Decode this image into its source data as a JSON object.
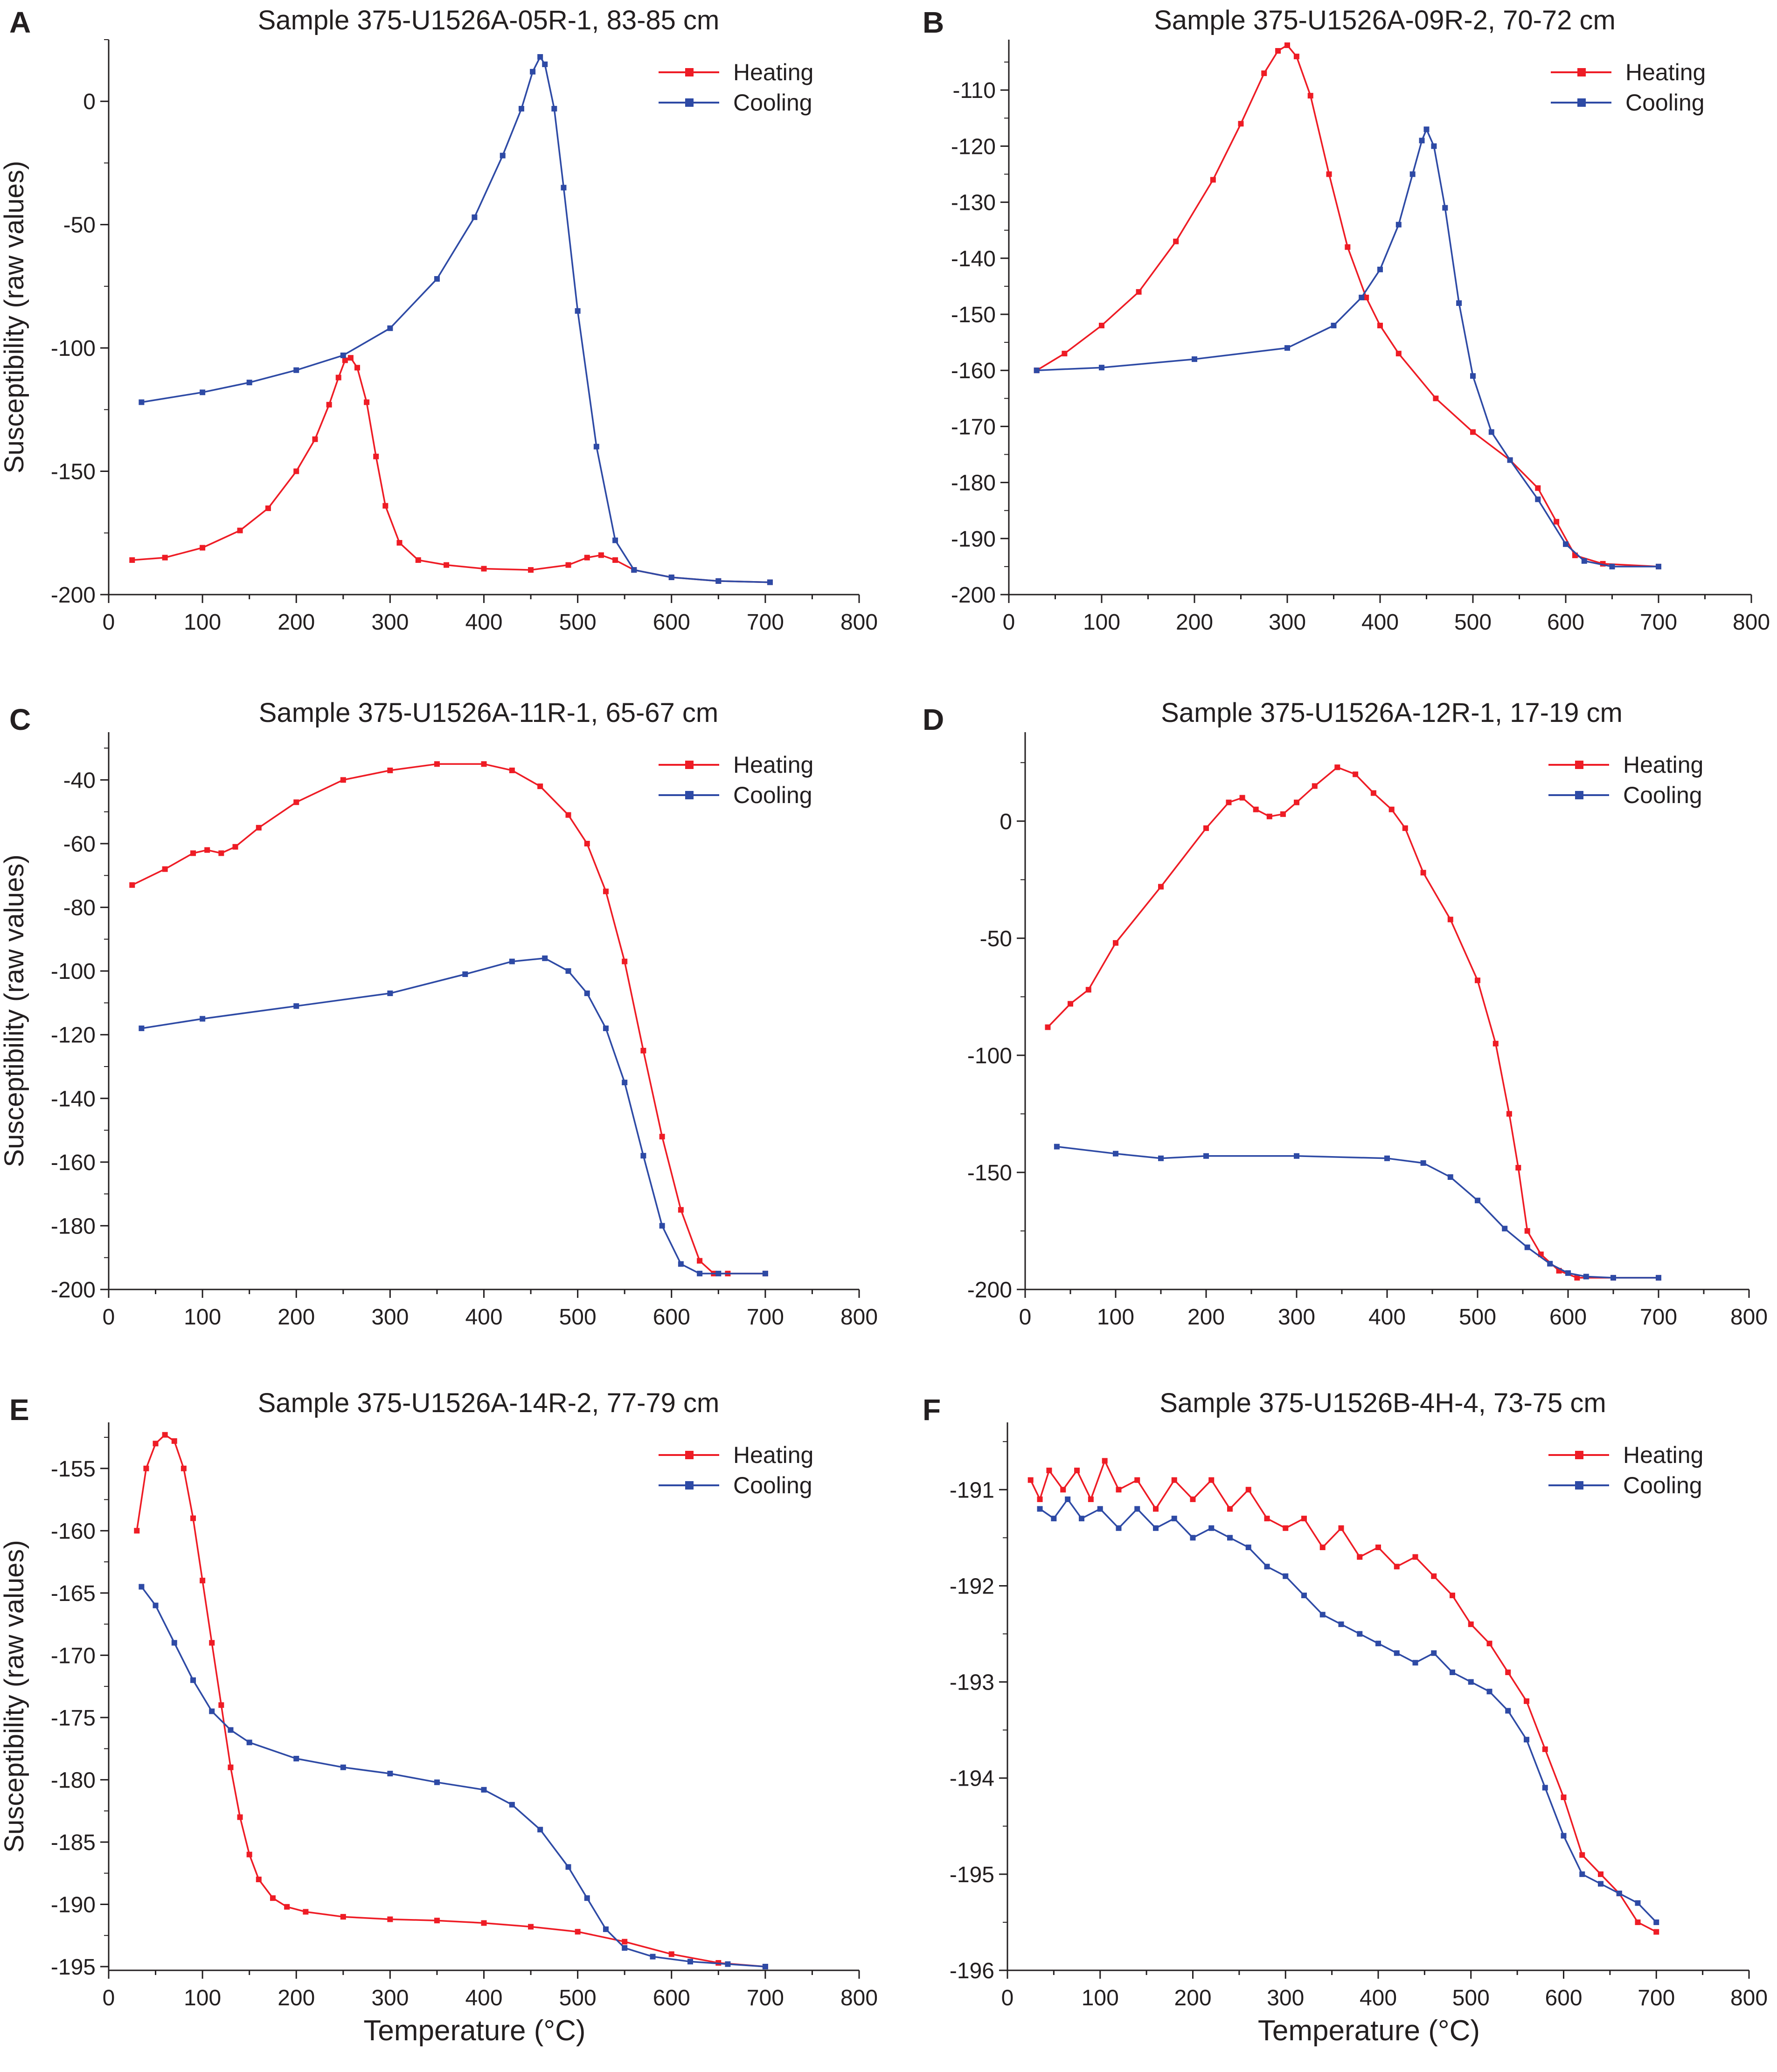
{
  "figure": {
    "shared_xlabel": "Temperature (°C)",
    "shared_ylabel": "Susceptibility (raw values)"
  },
  "legend": {
    "heating": "Heating",
    "cooling": "Cooling"
  },
  "colors": {
    "heating": "#ee1c25",
    "cooling": "#2e4aa5",
    "axis": "#231f20"
  },
  "chart_data": [
    {
      "panel": "A",
      "type": "line",
      "title": "Sample 375-U1526A-05R-1, 83-85 cm",
      "xlabel": "",
      "ylabel": "Susceptibility (raw values)",
      "xlim": [
        0,
        800
      ],
      "ylim": [
        -200,
        25
      ],
      "xticks": [
        "0",
        "100",
        "200",
        "300",
        "400",
        "500",
        "600",
        "700",
        "800"
      ],
      "yticks": [
        "-200",
        "-150",
        "-100",
        "-50",
        "0"
      ],
      "ytick_values": [
        -200,
        -150,
        -100,
        -50,
        0
      ],
      "legend_position": "top-right",
      "grid": false,
      "series": [
        {
          "name": "Heating",
          "color": "#ee1c25",
          "x": [
            25,
            60,
            100,
            140,
            170,
            200,
            220,
            235,
            245,
            252,
            258,
            265,
            275,
            285,
            295,
            310,
            330,
            360,
            400,
            450,
            490,
            510,
            525,
            540,
            560,
            600,
            650,
            705
          ],
          "y": [
            -186,
            -185,
            -181,
            -174,
            -165,
            -150,
            -137,
            -123,
            -112,
            -105,
            -104,
            -108,
            -122,
            -144,
            -164,
            -179,
            -186,
            -188,
            -189.5,
            -190,
            -188,
            -185,
            -184,
            -186,
            -190,
            -193,
            -194.5,
            -195
          ]
        },
        {
          "name": "Cooling",
          "color": "#2e4aa5",
          "x": [
            35,
            100,
            150,
            200,
            250,
            300,
            350,
            390,
            420,
            440,
            452,
            460,
            465,
            475,
            485,
            500,
            520,
            540,
            560,
            600,
            650,
            705
          ],
          "y": [
            -122,
            -118,
            -114,
            -109,
            -103,
            -92,
            -72,
            -47,
            -22,
            -3,
            12,
            18,
            15,
            -3,
            -35,
            -85,
            -140,
            -178,
            -190,
            -193,
            -194.5,
            -195
          ]
        }
      ]
    },
    {
      "panel": "B",
      "type": "line",
      "title": "Sample 375-U1526A-09R-2, 70-72 cm",
      "xlabel": "",
      "ylabel": "",
      "xlim": [
        0,
        800
      ],
      "ylim": [
        -200,
        -101
      ],
      "xticks": [
        "0",
        "100",
        "200",
        "300",
        "400",
        "500",
        "600",
        "700",
        "800"
      ],
      "yticks": [
        "-200",
        "-190",
        "-180",
        "-170",
        "-160",
        "-150",
        "-140",
        "-130",
        "-120",
        "-110"
      ],
      "ytick_values": [
        -200,
        -190,
        -180,
        -170,
        -160,
        -150,
        -140,
        -130,
        -120,
        -110
      ],
      "legend_position": "top-right",
      "grid": false,
      "series": [
        {
          "name": "Heating",
          "color": "#ee1c25",
          "x": [
            30,
            60,
            100,
            140,
            180,
            220,
            250,
            275,
            290,
            300,
            310,
            325,
            345,
            365,
            385,
            400,
            420,
            460,
            500,
            540,
            570,
            590,
            610,
            640,
            700
          ],
          "y": [
            -160,
            -157,
            -152,
            -146,
            -137,
            -126,
            -116,
            -107,
            -103,
            -102,
            -104,
            -111,
            -125,
            -138,
            -147,
            -152,
            -157,
            -165,
            -171,
            -176,
            -181,
            -187,
            -193,
            -194.5,
            -195
          ]
        },
        {
          "name": "Cooling",
          "color": "#2e4aa5",
          "x": [
            30,
            100,
            200,
            300,
            350,
            380,
            400,
            420,
            435,
            445,
            450,
            458,
            470,
            485,
            500,
            520,
            540,
            570,
            600,
            620,
            650,
            700
          ],
          "y": [
            -160,
            -159.5,
            -158,
            -156,
            -152,
            -147,
            -142,
            -134,
            -125,
            -119,
            -117,
            -120,
            -131,
            -148,
            -161,
            -171,
            -176,
            -183,
            -191,
            -194,
            -195,
            -195
          ]
        }
      ]
    },
    {
      "panel": "C",
      "type": "line",
      "title": "Sample 375-U1526A-11R-1, 65-67 cm",
      "xlabel": "",
      "ylabel": "Susceptibility (raw values)",
      "xlim": [
        0,
        800
      ],
      "ylim": [
        -200,
        -25
      ],
      "xticks": [
        "0",
        "100",
        "200",
        "300",
        "400",
        "500",
        "600",
        "700",
        "800"
      ],
      "yticks": [
        "-200",
        "-180",
        "-160",
        "-140",
        "-120",
        "-100",
        "-80",
        "-60",
        "-40"
      ],
      "ytick_values": [
        -200,
        -180,
        -160,
        -140,
        -120,
        -100,
        -80,
        -60,
        -40
      ],
      "legend_position": "top-right",
      "grid": false,
      "series": [
        {
          "name": "Heating",
          "color": "#ee1c25",
          "x": [
            25,
            60,
            90,
            105,
            120,
            135,
            160,
            200,
            250,
            300,
            350,
            400,
            430,
            460,
            490,
            510,
            530,
            550,
            570,
            590,
            610,
            630,
            645,
            660,
            700
          ],
          "y": [
            -73,
            -68,
            -63,
            -62,
            -63,
            -61,
            -55,
            -47,
            -40,
            -37,
            -35,
            -35,
            -37,
            -42,
            -51,
            -60,
            -75,
            -97,
            -125,
            -152,
            -175,
            -191,
            -195,
            -195,
            -195
          ]
        },
        {
          "name": "Cooling",
          "color": "#2e4aa5",
          "x": [
            35,
            100,
            200,
            300,
            380,
            430,
            465,
            490,
            510,
            530,
            550,
            570,
            590,
            610,
            630,
            650,
            700
          ],
          "y": [
            -118,
            -115,
            -111,
            -107,
            -101,
            -97,
            -96,
            -100,
            -107,
            -118,
            -135,
            -158,
            -180,
            -192,
            -195,
            -195,
            -195
          ]
        }
      ]
    },
    {
      "panel": "D",
      "type": "line",
      "title": "Sample 375-U1526A-12R-1, 17-19 cm",
      "xlabel": "",
      "ylabel": "",
      "xlim": [
        0,
        800
      ],
      "ylim": [
        -200,
        38
      ],
      "xticks": [
        "0",
        "100",
        "200",
        "300",
        "400",
        "500",
        "600",
        "700",
        "800"
      ],
      "yticks": [
        "-200",
        "-150",
        "-100",
        "-50",
        "0"
      ],
      "ytick_values": [
        -200,
        -150,
        -100,
        -50,
        0
      ],
      "legend_position": "top-right",
      "grid": false,
      "series": [
        {
          "name": "Heating",
          "color": "#ee1c25",
          "x": [
            25,
            50,
            70,
            100,
            150,
            200,
            225,
            240,
            255,
            270,
            285,
            300,
            320,
            345,
            365,
            385,
            405,
            420,
            440,
            470,
            500,
            520,
            535,
            545,
            555,
            570,
            590,
            610,
            650,
            700
          ],
          "y": [
            -88,
            -78,
            -72,
            -52,
            -28,
            -3,
            8,
            10,
            5,
            2,
            3,
            8,
            15,
            23,
            20,
            12,
            5,
            -3,
            -22,
            -42,
            -68,
            -95,
            -125,
            -148,
            -175,
            -185,
            -192,
            -195,
            -195,
            -195
          ]
        },
        {
          "name": "Cooling",
          "color": "#2e4aa5",
          "x": [
            35,
            100,
            150,
            200,
            300,
            400,
            440,
            470,
            500,
            530,
            555,
            580,
            600,
            620,
            650,
            700
          ],
          "y": [
            -139,
            -142,
            -144,
            -143,
            -143,
            -144,
            -146,
            -152,
            -162,
            -174,
            -182,
            -189,
            -193,
            -194.5,
            -195,
            -195
          ]
        }
      ]
    },
    {
      "panel": "E",
      "type": "line",
      "title": "Sample 375-U1526A-14R-2, 77-79 cm",
      "xlabel": "Temperature (°C)",
      "ylabel": "Susceptibility (raw values)",
      "xlim": [
        0,
        800
      ],
      "ylim": [
        -195.3,
        -151.3
      ],
      "xticks": [
        "0",
        "100",
        "200",
        "300",
        "400",
        "500",
        "600",
        "700",
        "800"
      ],
      "yticks": [
        "-195",
        "-190",
        "-185",
        "-180",
        "-175",
        "-170",
        "-165",
        "-160",
        "-155"
      ],
      "ytick_values": [
        -195,
        -190,
        -185,
        -180,
        -175,
        -170,
        -165,
        -160,
        -155
      ],
      "legend_position": "top-right",
      "grid": false,
      "series": [
        {
          "name": "Heating",
          "color": "#ee1c25",
          "x": [
            30,
            40,
            50,
            60,
            70,
            80,
            90,
            100,
            110,
            120,
            130,
            140,
            150,
            160,
            175,
            190,
            210,
            250,
            300,
            350,
            400,
            450,
            500,
            550,
            600,
            650,
            700
          ],
          "y": [
            -160,
            -155,
            -153,
            -152.3,
            -152.8,
            -155,
            -159,
            -164,
            -169,
            -174,
            -179,
            -183,
            -186,
            -188,
            -189.5,
            -190.2,
            -190.6,
            -191,
            -191.2,
            -191.3,
            -191.5,
            -191.8,
            -192.2,
            -193,
            -194,
            -194.7,
            -195
          ]
        },
        {
          "name": "Cooling",
          "color": "#2e4aa5",
          "x": [
            35,
            50,
            70,
            90,
            110,
            130,
            150,
            200,
            250,
            300,
            350,
            400,
            430,
            460,
            490,
            510,
            530,
            550,
            580,
            620,
            660,
            700
          ],
          "y": [
            -164.5,
            -166,
            -169,
            -172,
            -174.5,
            -176,
            -177,
            -178.3,
            -179,
            -179.5,
            -180.2,
            -180.8,
            -182,
            -184,
            -187,
            -189.5,
            -192,
            -193.5,
            -194.2,
            -194.6,
            -194.8,
            -195
          ]
        }
      ]
    },
    {
      "panel": "F",
      "type": "line",
      "title": "Sample 375-U1526B-4H-4, 73-75 cm",
      "xlabel": "Temperature (°C)",
      "ylabel": "",
      "xlim": [
        0,
        800
      ],
      "ylim": [
        -196,
        -190.3
      ],
      "xticks": [
        "0",
        "100",
        "200",
        "300",
        "400",
        "500",
        "600",
        "700",
        "800"
      ],
      "yticks": [
        "-196",
        "-195",
        "-194",
        "-193",
        "-192",
        "-191"
      ],
      "ytick_values": [
        -196,
        -195,
        -194,
        -193,
        -192,
        -191
      ],
      "legend_position": "top-right",
      "grid": false,
      "series": [
        {
          "name": "Heating",
          "color": "#ee1c25",
          "x": [
            25,
            35,
            45,
            60,
            75,
            90,
            105,
            120,
            140,
            160,
            180,
            200,
            220,
            240,
            260,
            280,
            300,
            320,
            340,
            360,
            380,
            400,
            420,
            440,
            460,
            480,
            500,
            520,
            540,
            560,
            580,
            600,
            620,
            640,
            660,
            680,
            700
          ],
          "y": [
            -190.9,
            -191.1,
            -190.8,
            -191.0,
            -190.8,
            -191.1,
            -190.7,
            -191.0,
            -190.9,
            -191.2,
            -190.9,
            -191.1,
            -190.9,
            -191.2,
            -191.0,
            -191.3,
            -191.4,
            -191.3,
            -191.6,
            -191.4,
            -191.7,
            -191.6,
            -191.8,
            -191.7,
            -191.9,
            -192.1,
            -192.4,
            -192.6,
            -192.9,
            -193.2,
            -193.7,
            -194.2,
            -194.8,
            -195.0,
            -195.2,
            -195.5,
            -195.6
          ]
        },
        {
          "name": "Cooling",
          "color": "#2e4aa5",
          "x": [
            35,
            50,
            65,
            80,
            100,
            120,
            140,
            160,
            180,
            200,
            220,
            240,
            260,
            280,
            300,
            320,
            340,
            360,
            380,
            400,
            420,
            440,
            460,
            480,
            500,
            520,
            540,
            560,
            580,
            600,
            620,
            640,
            660,
            680,
            700
          ],
          "y": [
            -191.2,
            -191.3,
            -191.1,
            -191.3,
            -191.2,
            -191.4,
            -191.2,
            -191.4,
            -191.3,
            -191.5,
            -191.4,
            -191.5,
            -191.6,
            -191.8,
            -191.9,
            -192.1,
            -192.3,
            -192.4,
            -192.5,
            -192.6,
            -192.7,
            -192.8,
            -192.7,
            -192.9,
            -193.0,
            -193.1,
            -193.3,
            -193.6,
            -194.1,
            -194.6,
            -195.0,
            -195.1,
            -195.2,
            -195.3,
            -195.5
          ]
        }
      ]
    }
  ]
}
